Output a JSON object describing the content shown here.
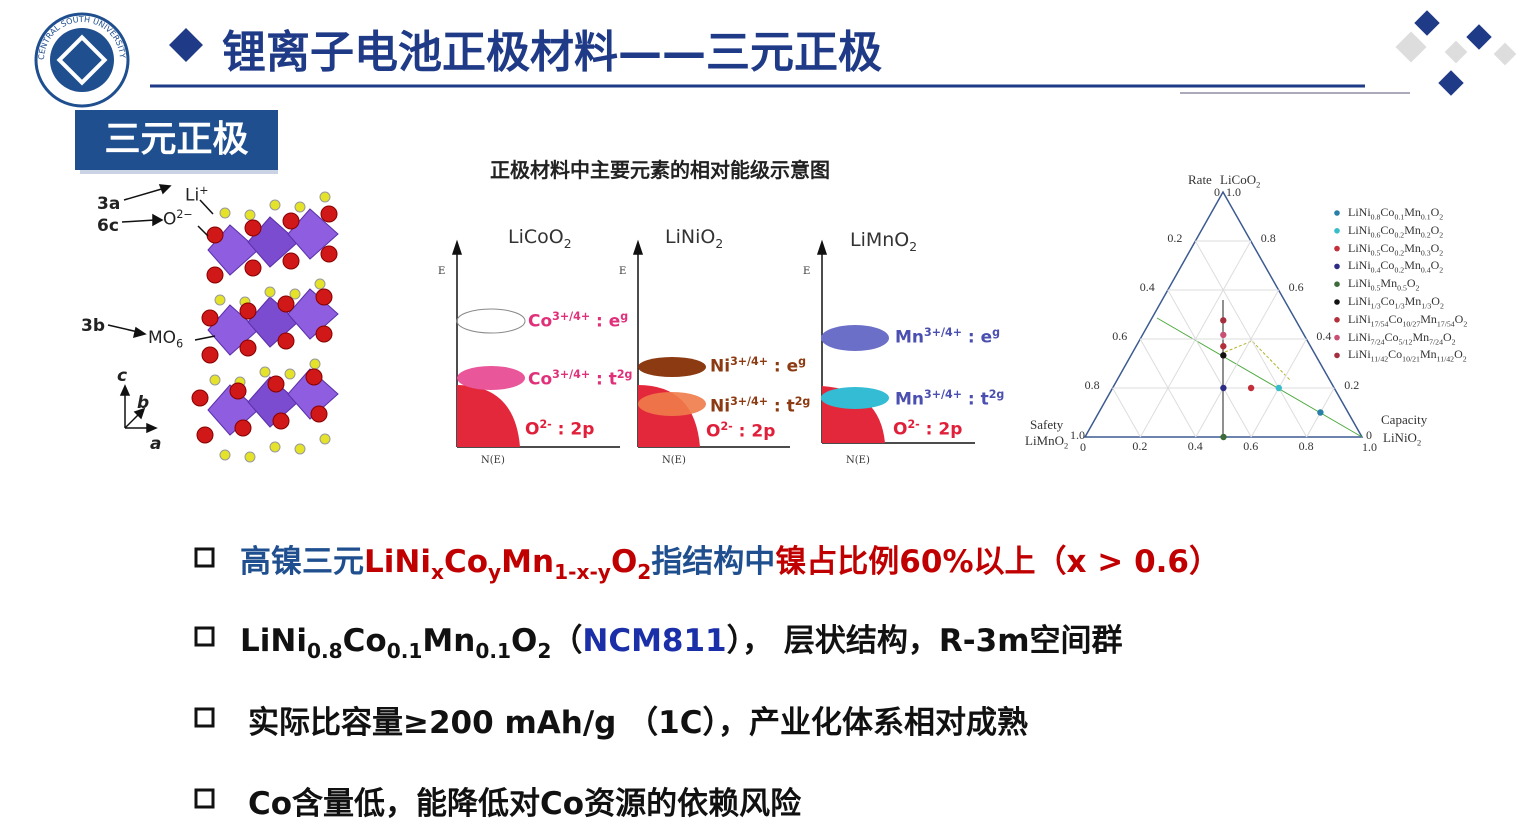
{
  "header": {
    "title": "锂离子电池正极材料——三元正极",
    "logo_text": "CENTRAL SOUTH UNIVERSITY"
  },
  "section": "三元正极",
  "crystal": {
    "site_3a": "3a",
    "site_6c": "6c",
    "site_3b": "3b",
    "li": "Li",
    "li_charge": "+",
    "o": "O",
    "o_charge": "2−",
    "mo": "MO",
    "mo_sub": "6",
    "axis_c": "c",
    "axis_b": "b",
    "axis_a": "a"
  },
  "energy": {
    "title": "正极材料中主要元素的相对能级示意图",
    "y_axis": "E",
    "x_axis": "N(E)",
    "panels": [
      {
        "name": [
          "LiCoO",
          "2"
        ],
        "levels": [
          [
            "Co",
            "3+/4+",
            " : e",
            "g"
          ],
          [
            "Co",
            "3+/4+",
            " : t",
            "2g"
          ],
          [
            "O",
            "2-",
            " : 2p"
          ]
        ]
      },
      {
        "name": [
          "LiNiO",
          "2"
        ],
        "levels": [
          [
            "Ni",
            "3+/4+",
            " : e",
            "g"
          ],
          [
            "Ni",
            "3+/4+",
            " : t",
            "2g"
          ],
          [
            "O",
            "2-",
            " : 2p"
          ]
        ]
      },
      {
        "name": [
          "LiMnO",
          "2"
        ],
        "levels": [
          [
            "Mn",
            "3+/4+",
            " : e",
            "g"
          ],
          [
            "Mn",
            "3+/4+",
            " : t",
            "2g"
          ],
          [
            "O",
            "2-",
            " : 2p"
          ]
        ]
      }
    ]
  },
  "ternary": {
    "top": {
      "name": "Rate",
      "compound": [
        "LiCoO",
        "2"
      ]
    },
    "left": {
      "name": "Safety",
      "compound": [
        "LiMnO",
        "2"
      ]
    },
    "right": {
      "name": "Capacity",
      "compound": [
        "LiNiO",
        "2"
      ]
    },
    "ticks": [
      0.2,
      0.4,
      0.6,
      0.8
    ],
    "end_labels": [
      "0",
      "1.0"
    ],
    "legend": [
      {
        "color": "#2a7fa8",
        "parts": [
          "LiNi",
          "0.8",
          "Co",
          "0.1",
          "Mn",
          "0.1",
          "O",
          "2"
        ]
      },
      {
        "color": "#38bcc8",
        "parts": [
          "LiNi",
          "0.6",
          "Co",
          "0.2",
          "Mn",
          "0.2",
          "O",
          "2"
        ]
      },
      {
        "color": "#c3303c",
        "parts": [
          "LiNi",
          "0.5",
          "Co",
          "0.2",
          "Mn",
          "0.3",
          "O",
          "2"
        ]
      },
      {
        "color": "#2d2d86",
        "parts": [
          "LiNi",
          "0.4",
          "Co",
          "0.2",
          "Mn",
          "0.4",
          "O",
          "2"
        ]
      },
      {
        "color": "#3d6b3a",
        "parts": [
          "LiNi",
          "0.5",
          "Mn",
          "0.5",
          "O",
          "2"
        ]
      },
      {
        "color": "#111111",
        "parts": [
          "LiNi",
          "1/3",
          "Co",
          "1/3",
          "Mn",
          "1/3",
          "O",
          "2"
        ]
      },
      {
        "color": "#b2303c",
        "parts": [
          "LiNi",
          "17/54",
          "Co",
          "10/27",
          "Mn",
          "17/54",
          "O",
          "2"
        ]
      },
      {
        "color": "#c85074",
        "parts": [
          "LiNi",
          "7/24",
          "Co",
          "5/12",
          "Mn",
          "7/24",
          "O",
          "2"
        ]
      },
      {
        "color": "#a32f3f",
        "parts": [
          "LiNi",
          "11/42",
          "Co",
          "10/21",
          "Mn",
          "11/42",
          "O",
          "2"
        ]
      }
    ]
  },
  "bullets": [
    [
      "高镍三元",
      "LiNi",
      "x",
      "Co",
      "y",
      "Mn",
      "1-x-y",
      "O",
      "2",
      "指结构中",
      "镍占比例60%以上（x > 0.6）"
    ],
    [
      "LiNi",
      "0.8",
      "Co",
      "0.1",
      "Mn",
      "0.1",
      "O",
      "2",
      "（",
      "NCM811",
      "），  层状结构，R-3m空间群"
    ],
    [
      "实际比容量≥200 mAh/g （1C），产业化体系相对成熟"
    ],
    [
      "Co含量低，能降低对Co资源的依赖风险"
    ]
  ]
}
